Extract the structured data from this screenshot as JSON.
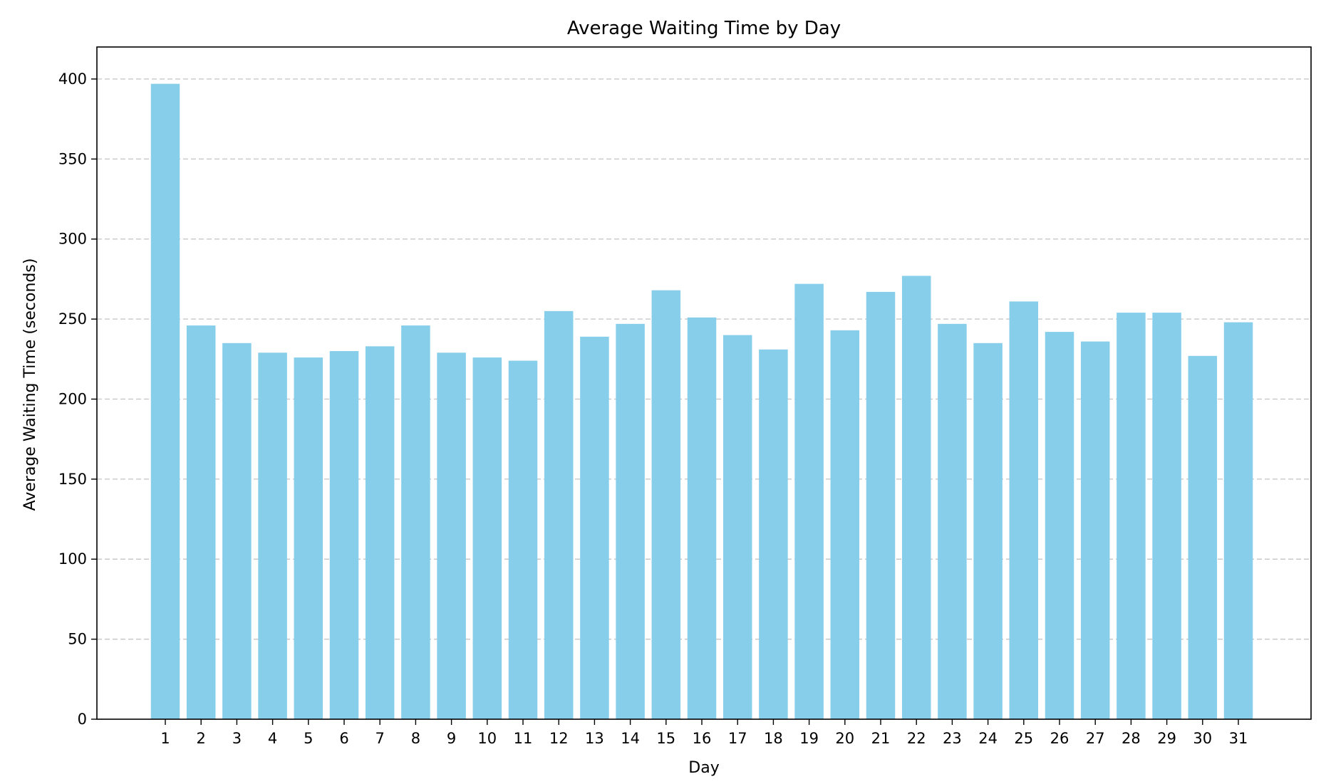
{
  "chart_data": {
    "type": "bar",
    "title": "Average Waiting Time by Day",
    "xlabel": "Day",
    "ylabel": "Average Waiting Time (seconds)",
    "categories": [
      "1",
      "2",
      "3",
      "4",
      "5",
      "6",
      "7",
      "8",
      "9",
      "10",
      "11",
      "12",
      "13",
      "14",
      "15",
      "16",
      "17",
      "18",
      "19",
      "20",
      "21",
      "22",
      "23",
      "24",
      "25",
      "26",
      "27",
      "28",
      "29",
      "30",
      "31"
    ],
    "values": [
      397,
      246,
      235,
      229,
      226,
      230,
      233,
      246,
      229,
      226,
      224,
      255,
      239,
      247,
      268,
      251,
      240,
      231,
      272,
      243,
      267,
      277,
      247,
      235,
      261,
      242,
      236,
      254,
      254,
      227,
      248
    ],
    "ylim": [
      0,
      420
    ],
    "yticks": [
      0,
      50,
      100,
      150,
      200,
      250,
      300,
      350,
      400
    ],
    "grid": {
      "axis": "y",
      "style": "dashed"
    },
    "colors": {
      "bar": "#87CEEB",
      "grid": "#c8c8c8",
      "axis": "#000000"
    }
  }
}
